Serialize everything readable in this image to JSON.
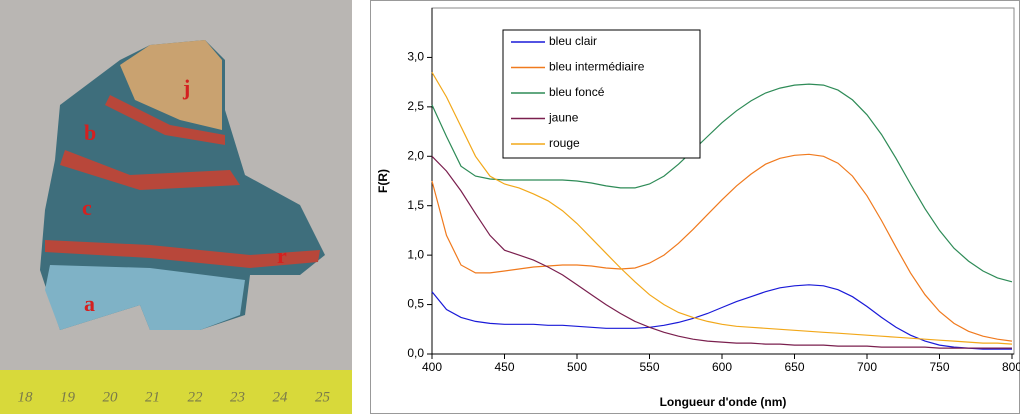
{
  "photo": {
    "labels": [
      "j",
      "b",
      "c",
      "r",
      "a"
    ],
    "ruler_labels": [
      "18",
      "19",
      "20",
      "21",
      "22",
      "23",
      "24",
      "25"
    ]
  },
  "chart_data": {
    "type": "line",
    "x_label": "Longueur d'onde (nm)",
    "y_label": "F(R)",
    "xlim": [
      400,
      800
    ],
    "xticks": [
      400,
      450,
      500,
      550,
      600,
      650,
      700,
      750,
      800
    ],
    "ylim": [
      0,
      3.5
    ],
    "yticks": [
      {
        "value": 0,
        "label": "0,0"
      },
      {
        "value": 0.5,
        "label": "0,5"
      },
      {
        "value": 1,
        "label": "1,0"
      },
      {
        "value": 1.5,
        "label": "1,5"
      },
      {
        "value": 2,
        "label": "2,0"
      },
      {
        "value": 2.5,
        "label": "2,5"
      },
      {
        "value": 3,
        "label": "3,0"
      }
    ],
    "legend": "upper left",
    "x": [
      400,
      410,
      420,
      430,
      440,
      450,
      460,
      470,
      480,
      490,
      500,
      510,
      520,
      530,
      540,
      550,
      560,
      570,
      580,
      590,
      600,
      610,
      620,
      630,
      640,
      650,
      660,
      670,
      680,
      690,
      700,
      710,
      720,
      730,
      740,
      750,
      760,
      770,
      780,
      790,
      800
    ],
    "series": [
      {
        "name": "bleu clair",
        "color": "#1a1ad8",
        "values": [
          0.63,
          0.45,
          0.37,
          0.33,
          0.31,
          0.3,
          0.3,
          0.3,
          0.29,
          0.29,
          0.28,
          0.27,
          0.26,
          0.26,
          0.26,
          0.27,
          0.29,
          0.32,
          0.36,
          0.41,
          0.47,
          0.53,
          0.58,
          0.63,
          0.67,
          0.69,
          0.7,
          0.69,
          0.65,
          0.58,
          0.48,
          0.37,
          0.27,
          0.19,
          0.13,
          0.09,
          0.07,
          0.06,
          0.05,
          0.05,
          0.05
        ]
      },
      {
        "name": "bleu intermédiaire",
        "color": "#f07a1e",
        "values": [
          1.75,
          1.2,
          0.9,
          0.82,
          0.82,
          0.84,
          0.86,
          0.88,
          0.89,
          0.9,
          0.9,
          0.89,
          0.87,
          0.86,
          0.87,
          0.92,
          1.0,
          1.12,
          1.26,
          1.41,
          1.56,
          1.7,
          1.82,
          1.92,
          1.98,
          2.01,
          2.02,
          2.0,
          1.93,
          1.8,
          1.6,
          1.35,
          1.08,
          0.82,
          0.6,
          0.43,
          0.31,
          0.23,
          0.18,
          0.15,
          0.13
        ]
      },
      {
        "name": "bleu foncé",
        "color": "#2e8b57",
        "values": [
          2.52,
          2.2,
          1.9,
          1.8,
          1.77,
          1.76,
          1.76,
          1.76,
          1.76,
          1.76,
          1.75,
          1.73,
          1.7,
          1.68,
          1.68,
          1.72,
          1.8,
          1.92,
          2.06,
          2.2,
          2.34,
          2.46,
          2.56,
          2.64,
          2.69,
          2.72,
          2.73,
          2.72,
          2.67,
          2.57,
          2.42,
          2.22,
          1.98,
          1.72,
          1.47,
          1.25,
          1.07,
          0.94,
          0.84,
          0.77,
          0.73
        ]
      },
      {
        "name": "jaune",
        "color": "#7a1f4e",
        "values": [
          2.0,
          1.85,
          1.65,
          1.42,
          1.2,
          1.05,
          1.0,
          0.95,
          0.88,
          0.8,
          0.7,
          0.6,
          0.5,
          0.41,
          0.33,
          0.27,
          0.22,
          0.18,
          0.15,
          0.13,
          0.12,
          0.11,
          0.11,
          0.1,
          0.1,
          0.09,
          0.09,
          0.09,
          0.08,
          0.08,
          0.08,
          0.07,
          0.07,
          0.07,
          0.07,
          0.06,
          0.06,
          0.06,
          0.06,
          0.06,
          0.06
        ]
      },
      {
        "name": "rouge",
        "color": "#f2a81a",
        "values": [
          2.85,
          2.6,
          2.3,
          2.0,
          1.8,
          1.72,
          1.68,
          1.62,
          1.55,
          1.45,
          1.32,
          1.17,
          1.02,
          0.87,
          0.73,
          0.6,
          0.5,
          0.42,
          0.37,
          0.33,
          0.3,
          0.28,
          0.27,
          0.26,
          0.25,
          0.24,
          0.23,
          0.22,
          0.21,
          0.2,
          0.19,
          0.18,
          0.17,
          0.16,
          0.15,
          0.14,
          0.13,
          0.12,
          0.11,
          0.11,
          0.1
        ]
      }
    ]
  }
}
